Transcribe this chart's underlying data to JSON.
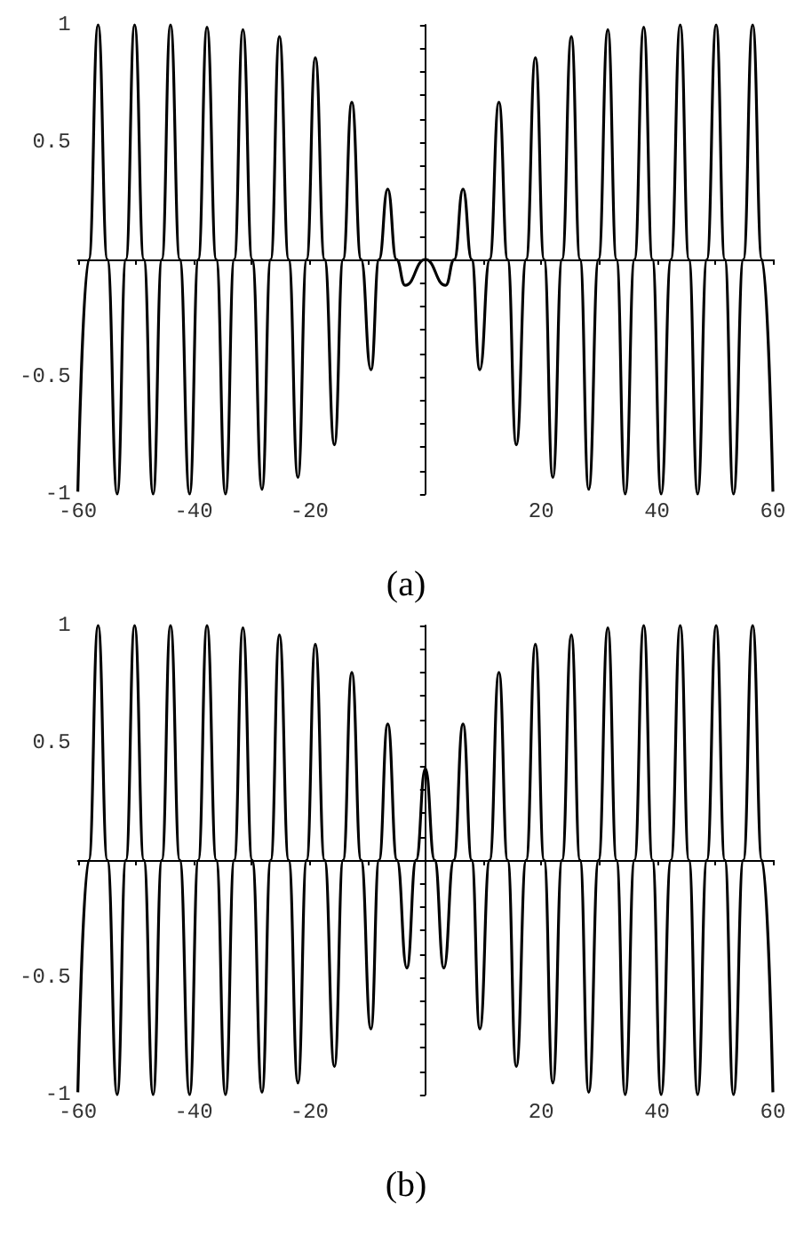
{
  "chart_data": [
    {
      "type": "line",
      "title": "(a)",
      "xlim": [
        -60,
        60
      ],
      "ylim": [
        -1,
        1
      ],
      "xticks": [
        {
          "value": -60,
          "label": "-60"
        },
        {
          "value": -50,
          "label": null
        },
        {
          "value": -40,
          "label": "-40"
        },
        {
          "value": -30,
          "label": null
        },
        {
          "value": -20,
          "label": "-20"
        },
        {
          "value": -10,
          "label": null
        },
        {
          "value": 0,
          "label": null
        },
        {
          "value": 10,
          "label": null
        },
        {
          "value": 20,
          "label": "20"
        },
        {
          "value": 30,
          "label": null
        },
        {
          "value": 40,
          "label": "40"
        },
        {
          "value": 50,
          "label": null
        },
        {
          "value": 60,
          "label": "60"
        }
      ],
      "yticks": [
        {
          "value": -1,
          "label": "-1"
        },
        {
          "value": -0.9,
          "label": null
        },
        {
          "value": -0.8,
          "label": null
        },
        {
          "value": -0.7,
          "label": null
        },
        {
          "value": -0.6,
          "label": null
        },
        {
          "value": -0.5,
          "label": "-0.5"
        },
        {
          "value": -0.4,
          "label": null
        },
        {
          "value": -0.3,
          "label": null
        },
        {
          "value": -0.2,
          "label": null
        },
        {
          "value": -0.1,
          "label": null
        },
        {
          "value": 0.1,
          "label": null
        },
        {
          "value": 0.2,
          "label": null
        },
        {
          "value": 0.3,
          "label": null
        },
        {
          "value": 0.4,
          "label": null
        },
        {
          "value": 0.5,
          "label": "0.5"
        },
        {
          "value": 0.6,
          "label": null
        },
        {
          "value": 0.7,
          "label": null
        },
        {
          "value": 0.8,
          "label": null
        },
        {
          "value": 0.9,
          "label": null
        },
        {
          "value": 1,
          "label": "1"
        }
      ],
      "marker": "none",
      "line_style": "solid",
      "series": [
        {
          "color": "#000000",
          "x": [
            -60,
            -58.1,
            -56.5,
            -54.9,
            -53.2,
            -51.7,
            -50.2,
            -48.6,
            -47.0,
            -45.5,
            -44.0,
            -42.4,
            -40.7,
            -39.2,
            -37.7,
            -36.1,
            -34.5,
            -33.0,
            -31.5,
            -29.9,
            -28.2,
            -26.7,
            -25.2,
            -23.6,
            -22.0,
            -20.5,
            -19.0,
            -17.4,
            -15.7,
            -14.2,
            -12.7,
            -11.1,
            -9.4,
            -8.0,
            -6.5,
            -5.0,
            -3.5,
            0,
            3.5,
            5.0,
            6.5,
            8.0,
            9.4,
            11.1,
            12.7,
            14.2,
            15.7,
            17.4,
            19.0,
            20.5,
            22.0,
            23.6,
            25.2,
            26.7,
            28.2,
            29.9,
            31.5,
            33.0,
            34.5,
            36.1,
            37.7,
            39.2,
            40.7,
            42.4,
            44.0,
            45.5,
            47.0,
            48.6,
            50.2,
            51.7,
            53.2,
            54.9,
            56.5,
            58.1,
            60
          ],
          "values": [
            -0.99,
            0,
            1,
            0,
            -1,
            0,
            1,
            0,
            -1,
            0,
            1,
            0,
            -1,
            0,
            0.99,
            0,
            -1,
            0,
            0.98,
            0,
            -0.98,
            0,
            0.95,
            0,
            -0.93,
            0,
            0.86,
            0,
            -0.79,
            0,
            0.67,
            0,
            -0.47,
            0,
            0.3,
            0,
            -0.11,
            0,
            -0.11,
            0,
            0.3,
            0,
            -0.47,
            0,
            0.67,
            0,
            -0.79,
            0,
            0.86,
            0,
            -0.93,
            0,
            0.95,
            0,
            -0.98,
            0,
            0.98,
            0,
            -1,
            0,
            0.99,
            0,
            -1,
            0,
            1,
            0,
            -1,
            0,
            1,
            0,
            -1,
            0,
            1,
            0,
            -0.99
          ]
        }
      ]
    },
    {
      "type": "line",
      "title": "(b)",
      "xlim": [
        -60,
        60
      ],
      "ylim": [
        -1,
        1
      ],
      "xticks": [
        {
          "value": -60,
          "label": "-60"
        },
        {
          "value": -50,
          "label": null
        },
        {
          "value": -40,
          "label": "-40"
        },
        {
          "value": -30,
          "label": null
        },
        {
          "value": -20,
          "label": "-20"
        },
        {
          "value": -10,
          "label": null
        },
        {
          "value": 0,
          "label": null
        },
        {
          "value": 10,
          "label": null
        },
        {
          "value": 20,
          "label": "20"
        },
        {
          "value": 30,
          "label": null
        },
        {
          "value": 40,
          "label": "40"
        },
        {
          "value": 50,
          "label": null
        },
        {
          "value": 60,
          "label": "60"
        }
      ],
      "yticks": [
        {
          "value": -1,
          "label": "-1"
        },
        {
          "value": -0.9,
          "label": null
        },
        {
          "value": -0.8,
          "label": null
        },
        {
          "value": -0.7,
          "label": null
        },
        {
          "value": -0.6,
          "label": null
        },
        {
          "value": -0.5,
          "label": "-0.5"
        },
        {
          "value": -0.4,
          "label": null
        },
        {
          "value": -0.3,
          "label": null
        },
        {
          "value": -0.2,
          "label": null
        },
        {
          "value": -0.1,
          "label": null
        },
        {
          "value": 0.1,
          "label": null
        },
        {
          "value": 0.2,
          "label": null
        },
        {
          "value": 0.3,
          "label": null
        },
        {
          "value": 0.4,
          "label": null
        },
        {
          "value": 0.5,
          "label": "0.5"
        },
        {
          "value": 0.6,
          "label": null
        },
        {
          "value": 0.7,
          "label": null
        },
        {
          "value": 0.8,
          "label": null
        },
        {
          "value": 0.9,
          "label": null
        },
        {
          "value": 1,
          "label": "1"
        }
      ],
      "marker": "none",
      "line_style": "solid",
      "series": [
        {
          "color": "#000000",
          "x": [
            -60,
            -58.1,
            -56.5,
            -54.9,
            -53.2,
            -51.7,
            -50.2,
            -48.6,
            -47.0,
            -45.5,
            -44.0,
            -42.4,
            -40.7,
            -39.2,
            -37.7,
            -36.1,
            -34.5,
            -33.0,
            -31.5,
            -29.9,
            -28.2,
            -26.7,
            -25.2,
            -23.6,
            -22.0,
            -20.5,
            -19.0,
            -17.4,
            -15.7,
            -14.2,
            -12.7,
            -11.1,
            -9.4,
            -8.0,
            -6.5,
            -4.9,
            -3.2,
            -1.6,
            0,
            1.6,
            3.2,
            4.9,
            6.5,
            8.0,
            9.4,
            11.1,
            12.7,
            14.2,
            15.7,
            17.4,
            19.0,
            20.5,
            22.0,
            23.6,
            25.2,
            26.7,
            28.2,
            29.9,
            31.5,
            33.0,
            34.5,
            36.1,
            37.7,
            39.2,
            40.7,
            42.4,
            44.0,
            45.5,
            47.0,
            48.6,
            50.2,
            51.7,
            53.2,
            54.9,
            56.5,
            58.1,
            60
          ],
          "values": [
            -0.99,
            0,
            1,
            0,
            -1,
            0,
            1,
            0,
            -1,
            0,
            1,
            0,
            -1,
            0,
            1,
            0,
            -1,
            0,
            0.99,
            0,
            -0.99,
            0,
            0.96,
            0,
            -0.95,
            0,
            0.92,
            0,
            -0.88,
            0,
            0.8,
            0,
            -0.72,
            0,
            0.58,
            0,
            -0.46,
            0,
            0.39,
            0,
            -0.46,
            0,
            0.58,
            0,
            -0.72,
            0,
            0.8,
            0,
            -0.88,
            0,
            0.92,
            0,
            -0.95,
            0,
            0.96,
            0,
            -0.99,
            0,
            0.99,
            0,
            -1,
            0,
            1,
            0,
            -1,
            0,
            1,
            0,
            -1,
            0,
            1,
            0,
            -1,
            0,
            1,
            0,
            -0.99
          ]
        }
      ]
    }
  ]
}
